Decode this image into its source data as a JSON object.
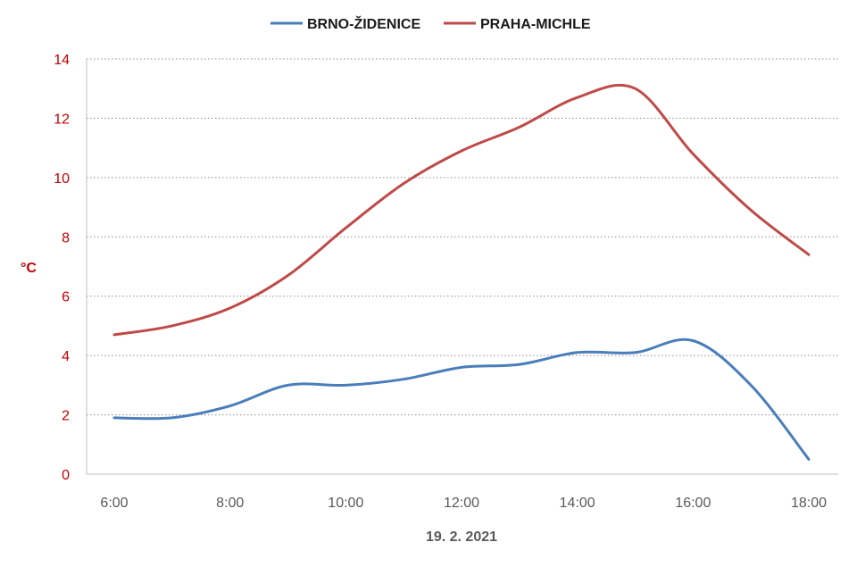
{
  "chart_data": {
    "type": "line",
    "xlabel": "19. 2. 2021",
    "ylabel": "°C",
    "x": [
      "6:00",
      "7:00",
      "8:00",
      "9:00",
      "10:00",
      "11:00",
      "12:00",
      "13:00",
      "14:00",
      "15:00",
      "16:00",
      "17:00",
      "18:00"
    ],
    "x_tick_labels": [
      "6:00",
      "8:00",
      "10:00",
      "12:00",
      "14:00",
      "16:00",
      "18:00"
    ],
    "y_tick_labels": [
      "0",
      "2",
      "4",
      "6",
      "8",
      "10",
      "12",
      "14"
    ],
    "ylim": [
      0,
      14
    ],
    "grid": "horizontal dotted",
    "legend": "top-center",
    "series": [
      {
        "name": "BRNO-ŽIDENICE",
        "color": "#4a7ebb",
        "values": [
          1.9,
          1.9,
          2.3,
          3.0,
          3.0,
          3.2,
          3.6,
          3.7,
          4.1,
          4.1,
          4.5,
          3.0,
          0.5
        ]
      },
      {
        "name": "PRAHA-MICHLE",
        "color": "#be4b48",
        "values": [
          4.7,
          5.0,
          5.6,
          6.7,
          8.3,
          9.8,
          10.9,
          11.7,
          12.7,
          13.0,
          10.8,
          8.9,
          7.4
        ]
      }
    ]
  }
}
